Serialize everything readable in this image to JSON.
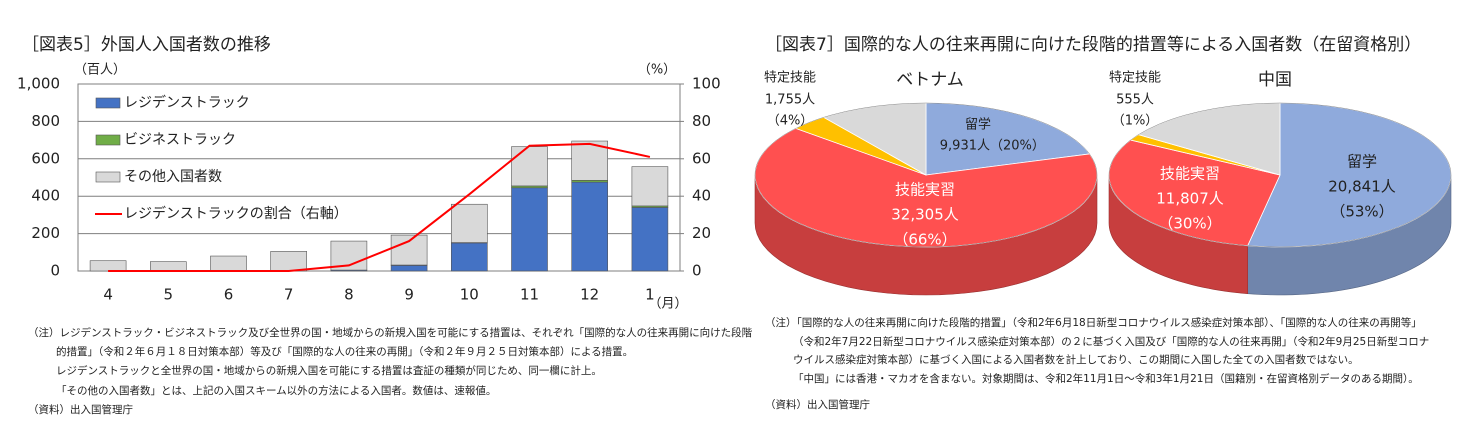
{
  "chart_data": [
    {
      "type": "bar",
      "stacked": true,
      "title": "［図表5］外国人入国者数の推移",
      "y_label": "（百人）",
      "y2_label": "（%）",
      "x_label": "（月）",
      "categories": [
        "4",
        "5",
        "6",
        "7",
        "8",
        "9",
        "10",
        "11",
        "12",
        "1"
      ],
      "series": [
        {
          "name": "レジデンストラック",
          "color": "#4472c4",
          "values": [
            0,
            0,
            0,
            0,
            5,
            30,
            150,
            445,
            475,
            340
          ]
        },
        {
          "name": "ビジネストラック",
          "color": "#70ad47",
          "values": [
            0,
            0,
            0,
            0,
            0,
            2,
            2,
            10,
            10,
            8
          ]
        },
        {
          "name": "その他入国者数",
          "color": "#d9d9d9",
          "values": [
            55,
            50,
            80,
            105,
            155,
            160,
            205,
            210,
            210,
            210
          ]
        },
        {
          "name": "レジデンストラックの割合（右軸）",
          "type": "line",
          "axis": "y2",
          "color": "#ff0000",
          "values": [
            0,
            0,
            0,
            0,
            3,
            16,
            41,
            67,
            68,
            61
          ]
        }
      ],
      "ylim": [
        0,
        1000
      ],
      "yticks": [
        0,
        200,
        400,
        600,
        800,
        {
          "value": 1000,
          "label": "1,000"
        }
      ],
      "y2lim": [
        0,
        100
      ],
      "y2ticks": [
        0,
        20,
        40,
        60,
        80,
        100
      ],
      "grid": true,
      "legend": "upper left",
      "notes": [
        "（注）レジデンストラック・ビジネストラック及び全世界の国・地域からの新規入国を可能にする措置は、それぞれ「国際的な人の往来再開に向けた段階",
        "的措置」（令和２年６月１８日対策本部）等及び「国際的な人の往来の再開」（令和２年９月２５日対策本部）による措置。",
        "レジデンストラックと全世界の国・地域からの新規入国を可能にする措置は査証の種類が同じため、同一欄に計上。",
        "「その他の入国者数」とは、上記の入国スキーム以外の方法による入国者。数値は、速報値。"
      ],
      "source": "（資料）出入国管理庁"
    },
    {
      "type": "pie",
      "title": "［図表7］国際的な人の往来再開に向けた段階的措置等による入国者数（在留資格別）",
      "colors": [
        "#8faadc",
        "#ff5050",
        "#ffc000",
        "#d9d9d9"
      ],
      "pies": [
        {
          "title": "ベトナム",
          "categories": [
            "留学",
            "技能実習",
            "特定技能",
            null
          ],
          "values": [
            9931,
            32305,
            1755,
            5000
          ],
          "value_labels": [
            "9,931人",
            "32,305人",
            "1,755人",
            null
          ],
          "percents": [
            20,
            66,
            4,
            null
          ],
          "percent_labels": [
            "（20%）",
            "（66%）",
            "（4%）",
            null
          ]
        },
        {
          "title": "中国",
          "categories": [
            "留学",
            "技能実習",
            "特定技能",
            null
          ],
          "values": [
            20841,
            11807,
            555,
            6100
          ],
          "value_labels": [
            "20,841人",
            "11,807人",
            "555人",
            null
          ],
          "percents": [
            53,
            30,
            1,
            null
          ],
          "percent_labels": [
            "（53%）",
            "（30%）",
            "（1%）",
            null
          ]
        }
      ],
      "notes": [
        "（注）「国際的な人の往来再開に向けた段階的措置」（令和2年6月18日新型コロナウイルス感染症対策本部）、「国際的な人の往来の再開等」",
        "（令和2年7月22日新型コロナウイルス感染症対策本部）の２に基づく入国及び「国際的な人の往来再開」（令和2年9月25日新型コロナ",
        "ウイルス感染症対策本部）に基づく入国による入国者数を計上しており、この期間に入国した全ての入国者数ではない。",
        "「中国」には香港・マカオを含まない。対象期間は、令和2年11月1日～令和3年1月21日（国籍別・在留資格別データのある期間）。"
      ],
      "source": "（資料）出入国管理庁"
    }
  ]
}
